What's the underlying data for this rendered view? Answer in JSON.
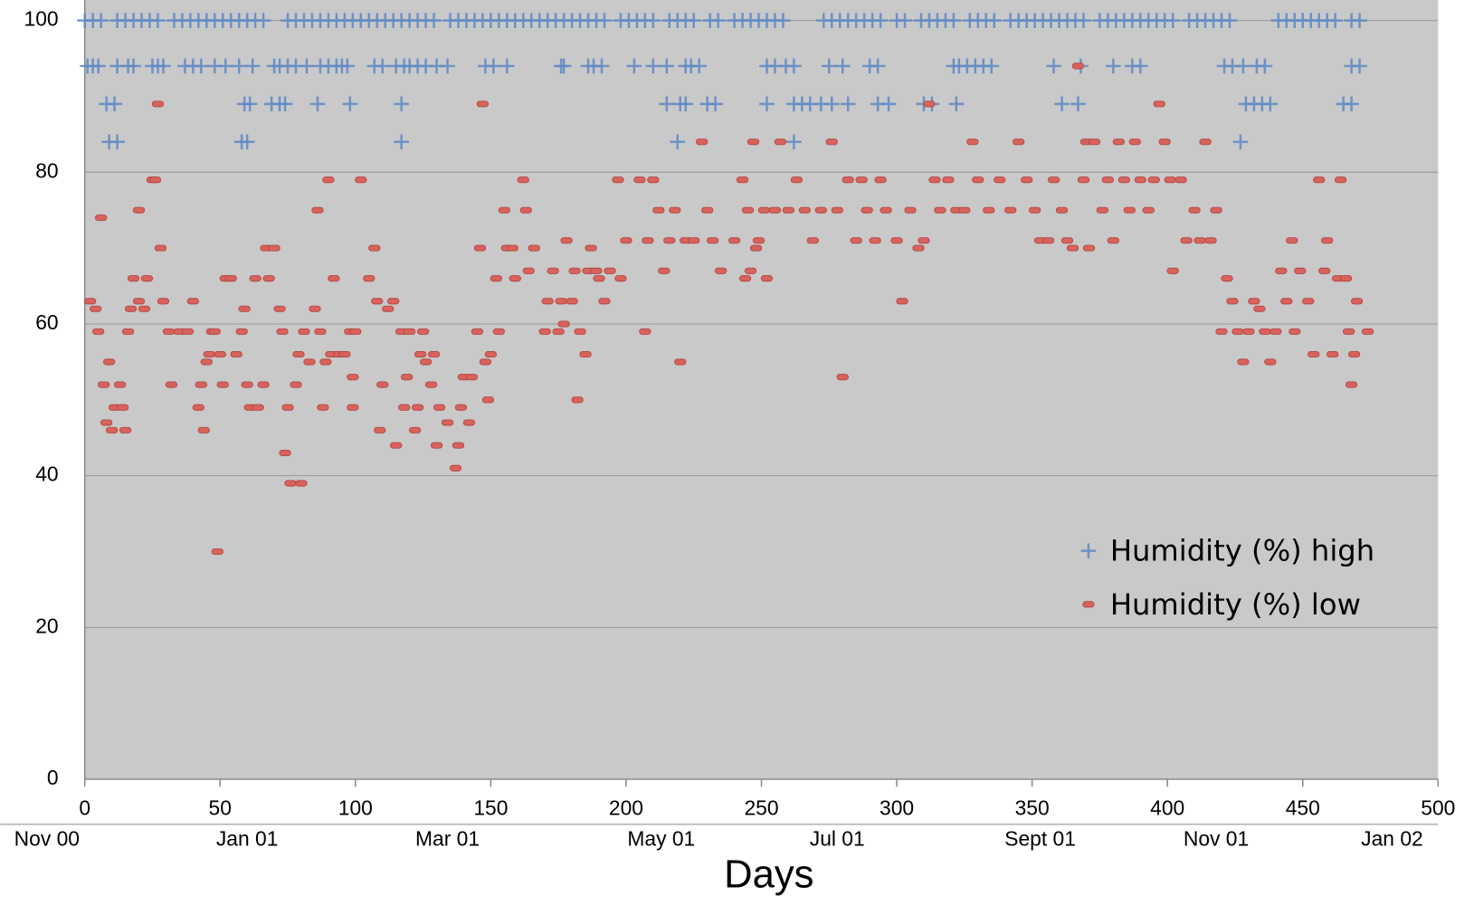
{
  "chart_data": {
    "type": "scatter",
    "x_label": "Days",
    "xlim": [
      0,
      500
    ],
    "xticks": [
      0,
      50,
      100,
      150,
      200,
      250,
      300,
      350,
      400,
      450,
      500
    ],
    "ylim": [
      0,
      102.7
    ],
    "yticks": [
      0,
      20,
      40,
      60,
      80,
      100
    ],
    "x2ticks": [
      {
        "value": -14,
        "label": "Nov 00"
      },
      {
        "value": 60,
        "label": "Jan 01"
      },
      {
        "value": 134,
        "label": "Mar 01"
      },
      {
        "value": 213,
        "label": "May 01"
      },
      {
        "value": 278,
        "label": "Jul 01"
      },
      {
        "value": 353,
        "label": "Sept 01"
      },
      {
        "value": 418,
        "label": "Nov 01"
      },
      {
        "value": 483,
        "label": "Jan 02"
      }
    ],
    "grid": true,
    "legend": "lower right",
    "series": [
      {
        "name": "Humidity (%) high",
        "color": "#5d88c6",
        "marker": "plus",
        "x": [
          0,
          3,
          6,
          12,
          15,
          18,
          21,
          24,
          27,
          33,
          36,
          39,
          42,
          45,
          48,
          51,
          54,
          57,
          60,
          63,
          66,
          75,
          78,
          81,
          84,
          87,
          90,
          93,
          96,
          99,
          102,
          105,
          108,
          111,
          114,
          117,
          120,
          123,
          126,
          129,
          135,
          138,
          141,
          144,
          147,
          150,
          153,
          156,
          159,
          162,
          165,
          168,
          171,
          174,
          177,
          180,
          183,
          186,
          189,
          192,
          198,
          201,
          204,
          207,
          210,
          216,
          219,
          222,
          225,
          231,
          234,
          240,
          243,
          246,
          249,
          252,
          255,
          258,
          273,
          276,
          279,
          282,
          285,
          288,
          291,
          294,
          300,
          303,
          309,
          312,
          315,
          318,
          321,
          327,
          330,
          333,
          336,
          342,
          345,
          348,
          351,
          354,
          357,
          360,
          363,
          366,
          369,
          375,
          378,
          381,
          384,
          387,
          390,
          393,
          396,
          399,
          402,
          408,
          411,
          414,
          417,
          420,
          423,
          441,
          444,
          447,
          450,
          453,
          456,
          459,
          462,
          468,
          471,
          1,
          3,
          5,
          12,
          16,
          18,
          25,
          27,
          29,
          37,
          40,
          43,
          48,
          52,
          57,
          62,
          70,
          72,
          75,
          78,
          82,
          87,
          90,
          93,
          95,
          97,
          107,
          110,
          115,
          118,
          120,
          123,
          126,
          130,
          134,
          148,
          151,
          156,
          176,
          177,
          186,
          188,
          191,
          203,
          210,
          215,
          222,
          224,
          227,
          252,
          255,
          259,
          262,
          275,
          280,
          290,
          293,
          321,
          323,
          326,
          329,
          332,
          335,
          358,
          368,
          380,
          387,
          390,
          421,
          424,
          428,
          433,
          436,
          468,
          471,
          8,
          11,
          59,
          61,
          69,
          72,
          74,
          86,
          98,
          117,
          215,
          220,
          222,
          230,
          233,
          252,
          262,
          265,
          268,
          272,
          276,
          282,
          293,
          297,
          310,
          313,
          322,
          361,
          367,
          429,
          432,
          435,
          438,
          465,
          468,
          9,
          12,
          58,
          60,
          117,
          219,
          262,
          427
        ],
        "values": [
          100,
          100,
          100,
          100,
          100,
          100,
          100,
          100,
          100,
          100,
          100,
          100,
          100,
          100,
          100,
          100,
          100,
          100,
          100,
          100,
          100,
          100,
          100,
          100,
          100,
          100,
          100,
          100,
          100,
          100,
          100,
          100,
          100,
          100,
          100,
          100,
          100,
          100,
          100,
          100,
          100,
          100,
          100,
          100,
          100,
          100,
          100,
          100,
          100,
          100,
          100,
          100,
          100,
          100,
          100,
          100,
          100,
          100,
          100,
          100,
          100,
          100,
          100,
          100,
          100,
          100,
          100,
          100,
          100,
          100,
          100,
          100,
          100,
          100,
          100,
          100,
          100,
          100,
          100,
          100,
          100,
          100,
          100,
          100,
          100,
          100,
          100,
          100,
          100,
          100,
          100,
          100,
          100,
          100,
          100,
          100,
          100,
          100,
          100,
          100,
          100,
          100,
          100,
          100,
          100,
          100,
          100,
          100,
          100,
          100,
          100,
          100,
          100,
          100,
          100,
          100,
          100,
          100,
          100,
          100,
          100,
          100,
          100,
          100,
          100,
          100,
          100,
          100,
          100,
          100,
          100,
          100,
          100,
          94,
          94,
          94,
          94,
          94,
          94,
          94,
          94,
          94,
          94,
          94,
          94,
          94,
          94,
          94,
          94,
          94,
          94,
          94,
          94,
          94,
          94,
          94,
          94,
          94,
          94,
          94,
          94,
          94,
          94,
          94,
          94,
          94,
          94,
          94,
          94,
          94,
          94,
          94,
          94,
          94,
          94,
          94,
          94,
          94,
          94,
          94,
          94,
          94,
          94,
          94,
          94,
          94,
          94,
          94,
          94,
          94,
          94,
          94,
          94,
          94,
          94,
          94,
          94,
          94,
          94,
          94,
          94,
          94,
          94,
          94,
          94,
          94,
          94,
          94,
          89,
          89,
          89,
          89,
          89,
          89,
          89,
          89,
          89,
          89,
          89,
          89,
          89,
          89,
          89,
          89,
          89,
          89,
          89,
          89,
          89,
          89,
          89,
          89,
          89,
          89,
          89,
          89,
          89,
          89,
          89,
          89,
          89,
          89,
          89,
          84,
          84,
          84,
          84,
          84,
          84,
          84,
          84
        ]
      },
      {
        "name": "Humidity (%) low",
        "color": "#d8625c",
        "marker": "dash",
        "x": [
          2,
          4,
          5,
          6,
          7,
          8,
          9,
          10,
          11,
          13,
          14,
          15,
          16,
          17,
          18,
          20,
          20,
          22,
          23,
          25,
          26,
          27,
          28,
          29,
          31,
          32,
          35,
          38,
          40,
          42,
          43,
          44,
          45,
          46,
          47,
          48,
          49,
          50,
          51,
          52,
          54,
          56,
          58,
          59,
          60,
          61,
          63,
          64,
          66,
          67,
          68,
          70,
          72,
          73,
          74,
          75,
          76,
          78,
          79,
          80,
          81,
          83,
          85,
          86,
          87,
          88,
          89,
          90,
          91,
          92,
          94,
          96,
          98,
          99,
          99,
          100,
          102,
          105,
          107,
          108,
          109,
          110,
          112,
          114,
          115,
          117,
          118,
          119,
          120,
          122,
          123,
          124,
          125,
          126,
          128,
          129,
          130,
          131,
          134,
          137,
          138,
          139,
          140,
          142,
          143,
          145,
          146,
          147,
          148,
          149,
          150,
          152,
          153,
          155,
          156,
          158,
          159,
          162,
          163,
          164,
          166,
          170,
          171,
          173,
          175,
          176,
          177,
          178,
          180,
          181,
          182,
          183,
          185,
          186,
          187,
          189,
          190,
          192,
          194,
          197,
          198,
          200,
          205,
          207,
          208,
          210,
          212,
          214,
          216,
          218,
          220,
          222,
          225,
          228,
          230,
          232,
          235,
          240,
          243,
          244,
          245,
          246,
          247,
          248,
          249,
          251,
          252,
          255,
          257,
          260,
          263,
          266,
          269,
          272,
          276,
          278,
          280,
          282,
          285,
          287,
          289,
          292,
          294,
          296,
          300,
          302,
          305,
          308,
          310,
          312,
          314,
          316,
          319,
          322,
          325,
          328,
          330,
          334,
          338,
          342,
          345,
          348,
          351,
          353,
          356,
          358,
          361,
          363,
          365,
          367,
          369,
          370,
          371,
          373,
          376,
          378,
          380,
          382,
          384,
          386,
          388,
          390,
          393,
          395,
          397,
          399,
          401,
          402,
          405,
          407,
          410,
          412,
          414,
          416,
          418,
          420,
          422,
          424,
          426,
          428,
          430,
          432,
          434,
          436,
          438,
          440,
          442,
          444,
          446,
          447,
          449,
          452,
          454,
          456,
          458,
          459,
          461,
          463,
          464,
          466,
          467,
          468,
          469,
          470,
          474
        ],
        "values": [
          63,
          62,
          59,
          74,
          52,
          47,
          55,
          46,
          49,
          52,
          49,
          46,
          59,
          62,
          66,
          63,
          75,
          62,
          66,
          79,
          79,
          89,
          70,
          63,
          59,
          52,
          59,
          59,
          63,
          49,
          52,
          46,
          55,
          56,
          59,
          59,
          30,
          56,
          52,
          66,
          66,
          56,
          59,
          62,
          52,
          49,
          66,
          49,
          52,
          70,
          66,
          70,
          62,
          59,
          43,
          49,
          39,
          52,
          56,
          39,
          59,
          55,
          62,
          75,
          59,
          49,
          55,
          79,
          56,
          66,
          56,
          56,
          59,
          49,
          53,
          59,
          79,
          66,
          70,
          63,
          46,
          52,
          62,
          63,
          44,
          59,
          49,
          53,
          59,
          46,
          49,
          56,
          59,
          55,
          52,
          56,
          44,
          49,
          47,
          41,
          44,
          49,
          53,
          47,
          53,
          59,
          70,
          89,
          55,
          50,
          56,
          66,
          59,
          75,
          70,
          70,
          66,
          79,
          75,
          67,
          70,
          59,
          63,
          67,
          59,
          63,
          60,
          71,
          63,
          67,
          50,
          59,
          56,
          67,
          70,
          67,
          66,
          63,
          67,
          79,
          66,
          71,
          79,
          59,
          71,
          79,
          75,
          67,
          71,
          75,
          55,
          71,
          71,
          84,
          75,
          71,
          67,
          71,
          79,
          66,
          75,
          67,
          84,
          70,
          71,
          75,
          66,
          75,
          84,
          75,
          79,
          75,
          71,
          75,
          84,
          75,
          53,
          79,
          71,
          79,
          75,
          71,
          79,
          75,
          71,
          63,
          75,
          70,
          71,
          89,
          79,
          75,
          79,
          75,
          75,
          84,
          79,
          75,
          79,
          75,
          84,
          79,
          75,
          71,
          71,
          79,
          75,
          71,
          70,
          94,
          79,
          84,
          70,
          84,
          75,
          79,
          71,
          84,
          79,
          75,
          84,
          79,
          75,
          79,
          89,
          84,
          79,
          67,
          79,
          71,
          75,
          71,
          84,
          71,
          75,
          59,
          66,
          63,
          59,
          55,
          59,
          63,
          62,
          59,
          55,
          59,
          67,
          63,
          71,
          59,
          67,
          63,
          56,
          79,
          67,
          71,
          56,
          66,
          79,
          66,
          59,
          52,
          56,
          63,
          59
        ]
      }
    ]
  }
}
